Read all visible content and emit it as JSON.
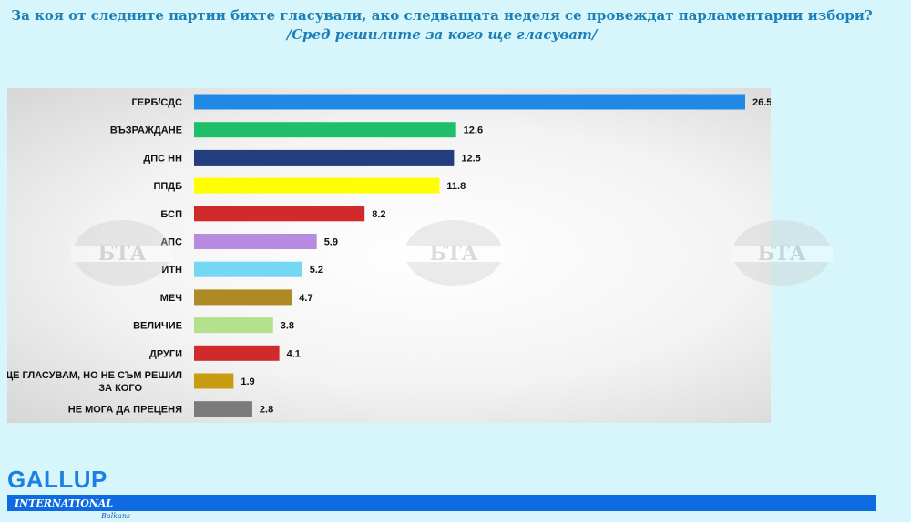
{
  "header": {
    "title": "За коя от следните партии бихте гласували, ако следващата неделя се провеждат парламентарни избори?",
    "subtitle": "/Сред решилите за кого ще гласуват/"
  },
  "watermark": {
    "text": "БТА"
  },
  "chart_data": {
    "type": "bar",
    "orientation": "horizontal",
    "categories": [
      "ГЕРБ/СДС",
      "ВЪЗРАЖДАНЕ",
      "ДПС НН",
      "ППДБ",
      "БСП",
      "АПС",
      "ИТН",
      "МЕЧ",
      "ВЕЛИЧИЕ",
      "ДРУГИ",
      "ЩЕ ГЛАСУВАМ, НО НЕ СЪМ РЕШИЛ ЗА КОГО",
      "НЕ МОГА ДА ПРЕЦЕНЯ"
    ],
    "label_lines": [
      [
        "ГЕРБ/СДС"
      ],
      [
        "ВЪЗРАЖДАНЕ"
      ],
      [
        "ДПС НН"
      ],
      [
        "ППДБ"
      ],
      [
        "БСП"
      ],
      [
        "АПС"
      ],
      [
        "ИТН"
      ],
      [
        "МЕЧ"
      ],
      [
        "ВЕЛИЧИЕ"
      ],
      [
        "ДРУГИ"
      ],
      [
        "ЩЕ ГЛАСУВАМ, НО НЕ СЪМ РЕШИЛ",
        "ЗА КОГО"
      ],
      [
        "НЕ МОГА ДА ПРЕЦЕНЯ"
      ]
    ],
    "values": [
      26.5,
      12.6,
      12.5,
      11.8,
      8.2,
      5.9,
      5.2,
      4.7,
      3.8,
      4.1,
      1.9,
      2.8
    ],
    "value_labels": [
      "26.5",
      "12.6",
      "12.5",
      "11.8",
      "8.2",
      "5.9",
      "5.2",
      "4.7",
      "3.8",
      "4.1",
      "1.9",
      "2.8"
    ],
    "colors": [
      "#1f8ae6",
      "#1fbf6a",
      "#233e7e",
      "#ffff00",
      "#d02a2a",
      "#b78be0",
      "#74d8f4",
      "#ad8a24",
      "#b2e28e",
      "#d02a2a",
      "#c89c10",
      "#7a7a7a"
    ],
    "xlim": [
      0,
      26.5
    ],
    "grid": false,
    "legend": "none"
  },
  "footer": {
    "brand": "GALLUP",
    "brand_sub": "INTERNATIONAL",
    "brand_tiny": "Balkans"
  }
}
